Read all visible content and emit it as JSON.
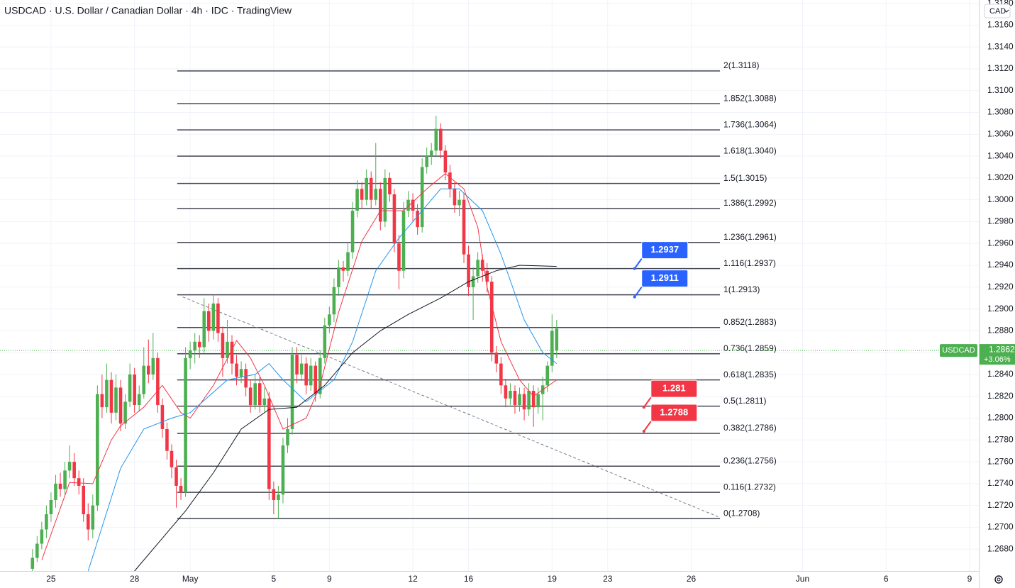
{
  "chart_data": {
    "type": "candlestick",
    "title": "USDCAD · U.S. Dollar / Canadian Dollar · 4h · IDC · TradingView",
    "currency": "CAD",
    "symbol": "USDCAD",
    "last_price": 1.2862,
    "last_change": "+3.06%",
    "up_color": "#4caf50",
    "down_color": "#f23645",
    "grid": true,
    "xlim": [
      -7,
      204
    ],
    "xticks": [
      {
        "value": 4,
        "label": "25"
      },
      {
        "value": 22,
        "label": "28"
      },
      {
        "value": 34,
        "label": "May"
      },
      {
        "value": 52,
        "label": "5"
      },
      {
        "value": 64,
        "label": "9"
      },
      {
        "value": 82,
        "label": "12"
      },
      {
        "value": 94,
        "label": "16"
      },
      {
        "value": 112,
        "label": "19"
      },
      {
        "value": 124,
        "label": "23"
      },
      {
        "value": 142,
        "label": "26"
      },
      {
        "value": 166,
        "label": "Jun"
      },
      {
        "value": 184,
        "label": "6"
      },
      {
        "value": 202,
        "label": "9"
      }
    ],
    "ylim": [
      1.266,
      1.3183
    ],
    "yticks": [
      {
        "value": 1.268,
        "label": "1.2680"
      },
      {
        "value": 1.27,
        "label": "1.2700"
      },
      {
        "value": 1.272,
        "label": "1.2720"
      },
      {
        "value": 1.274,
        "label": "1.2740"
      },
      {
        "value": 1.276,
        "label": "1.2760"
      },
      {
        "value": 1.278,
        "label": "1.2780"
      },
      {
        "value": 1.28,
        "label": "1.2800"
      },
      {
        "value": 1.282,
        "label": "1.2820"
      },
      {
        "value": 1.284,
        "label": "1.2840"
      },
      {
        "value": 1.286,
        "label": "1.2860"
      },
      {
        "value": 1.288,
        "label": "1.2880"
      },
      {
        "value": 1.29,
        "label": "1.2900"
      },
      {
        "value": 1.292,
        "label": "1.2920"
      },
      {
        "value": 1.294,
        "label": "1.2940"
      },
      {
        "value": 1.296,
        "label": "1.2960"
      },
      {
        "value": 1.298,
        "label": "1.2980"
      },
      {
        "value": 1.3,
        "label": "1.3000"
      },
      {
        "value": 1.302,
        "label": "1.3020"
      },
      {
        "value": 1.304,
        "label": "1.3040"
      },
      {
        "value": 1.306,
        "label": "1.3060"
      },
      {
        "value": 1.308,
        "label": "1.3080"
      },
      {
        "value": 1.31,
        "label": "1.3100"
      },
      {
        "value": 1.312,
        "label": "1.3120"
      },
      {
        "value": 1.314,
        "label": "1.3140"
      },
      {
        "value": 1.316,
        "label": "1.3160"
      },
      {
        "value": 1.318,
        "label": "1.3180"
      }
    ],
    "x": [
      0,
      1,
      2,
      3,
      4,
      5,
      6,
      7,
      8,
      9,
      10,
      11,
      12,
      13,
      14,
      15,
      16,
      17,
      18,
      19,
      20,
      21,
      22,
      23,
      24,
      25,
      26,
      27,
      28,
      29,
      30,
      31,
      32,
      33,
      34,
      35,
      36,
      37,
      38,
      39,
      40,
      41,
      42,
      43,
      44,
      45,
      46,
      47,
      48,
      49,
      50,
      51,
      52,
      53,
      54,
      55,
      56,
      57,
      58,
      59,
      60,
      61,
      62,
      63,
      64,
      65,
      66,
      67,
      68,
      69,
      70,
      71,
      72,
      73,
      74,
      75,
      76,
      77,
      78,
      79,
      80,
      81,
      82,
      83,
      84,
      85,
      86,
      87,
      88,
      89,
      90,
      91,
      92,
      93,
      94,
      95,
      96,
      97,
      98,
      99,
      100,
      101,
      102,
      103,
      104,
      105,
      106,
      107,
      108,
      109,
      110,
      111,
      112,
      113
    ],
    "candles": [
      [
        1.2662,
        1.268,
        1.2655,
        1.2672
      ],
      [
        1.2672,
        1.2692,
        1.2668,
        1.2685
      ],
      [
        1.2685,
        1.2705,
        1.268,
        1.2698
      ],
      [
        1.2698,
        1.272,
        1.269,
        1.2712
      ],
      [
        1.2712,
        1.2732,
        1.2705,
        1.2725
      ],
      [
        1.2725,
        1.2748,
        1.2718,
        1.274
      ],
      [
        1.274,
        1.275,
        1.2728,
        1.2735
      ],
      [
        1.2735,
        1.276,
        1.273,
        1.2752
      ],
      [
        1.2752,
        1.2775,
        1.2745,
        1.276
      ],
      [
        1.276,
        1.2768,
        1.2738,
        1.2745
      ],
      [
        1.2745,
        1.2752,
        1.273,
        1.2738
      ],
      [
        1.2738,
        1.2745,
        1.2705,
        1.2712
      ],
      [
        1.2712,
        1.2722,
        1.2688,
        1.2698
      ],
      [
        1.2698,
        1.273,
        1.269,
        1.272
      ],
      [
        1.272,
        1.283,
        1.2715,
        1.2822
      ],
      [
        1.2822,
        1.284,
        1.28,
        1.281
      ],
      [
        1.281,
        1.285,
        1.2805,
        1.2835
      ],
      [
        1.2835,
        1.2842,
        1.2795,
        1.2805
      ],
      [
        1.2805,
        1.284,
        1.2798,
        1.2828
      ],
      [
        1.2828,
        1.2835,
        1.2788,
        1.2795
      ],
      [
        1.2795,
        1.2822,
        1.279,
        1.2815
      ],
      [
        1.2815,
        1.285,
        1.281,
        1.284
      ],
      [
        1.284,
        1.2846,
        1.2805,
        1.2812
      ],
      [
        1.2812,
        1.283,
        1.2806,
        1.2822
      ],
      [
        1.2822,
        1.2865,
        1.2818,
        1.2848
      ],
      [
        1.2848,
        1.2872,
        1.2832,
        1.284
      ],
      [
        1.284,
        1.2878,
        1.2835,
        1.2855
      ],
      [
        1.2855,
        1.286,
        1.2805,
        1.2812
      ],
      [
        1.2812,
        1.2818,
        1.2782,
        1.279
      ],
      [
        1.279,
        1.2796,
        1.2762,
        1.277
      ],
      [
        1.277,
        1.2776,
        1.2745,
        1.2755
      ],
      [
        1.2755,
        1.2762,
        1.2718,
        1.2738
      ],
      [
        1.2738,
        1.2745,
        1.2725,
        1.2732
      ],
      [
        1.2732,
        1.2865,
        1.2728,
        1.2855
      ],
      [
        1.2855,
        1.287,
        1.2845,
        1.2862
      ],
      [
        1.2862,
        1.2878,
        1.285,
        1.287
      ],
      [
        1.287,
        1.2876,
        1.2855,
        1.2865
      ],
      [
        1.2865,
        1.291,
        1.286,
        1.2898
      ],
      [
        1.2898,
        1.2905,
        1.287,
        1.288
      ],
      [
        1.288,
        1.2913,
        1.2872,
        1.2905
      ],
      [
        1.2905,
        1.291,
        1.287,
        1.2878
      ],
      [
        1.2878,
        1.2884,
        1.2838,
        1.2855
      ],
      [
        1.2855,
        1.289,
        1.285,
        1.287
      ],
      [
        1.287,
        1.2876,
        1.284,
        1.285
      ],
      [
        1.285,
        1.2858,
        1.283,
        1.2838
      ],
      [
        1.2838,
        1.2852,
        1.2832,
        1.2845
      ],
      [
        1.2845,
        1.285,
        1.282,
        1.2828
      ],
      [
        1.2828,
        1.2835,
        1.2805,
        1.2812
      ],
      [
        1.2812,
        1.284,
        1.2808,
        1.2832
      ],
      [
        1.2832,
        1.2838,
        1.2805,
        1.2812
      ],
      [
        1.2812,
        1.2828,
        1.2806,
        1.2818
      ],
      [
        1.2818,
        1.2824,
        1.2725,
        1.2735
      ],
      [
        1.2735,
        1.2742,
        1.2712,
        1.2725
      ],
      [
        1.2725,
        1.2738,
        1.2708,
        1.273
      ],
      [
        1.273,
        1.2782,
        1.2722,
        1.2775
      ],
      [
        1.2775,
        1.28,
        1.2768,
        1.279
      ],
      [
        1.279,
        1.2865,
        1.2785,
        1.2858
      ],
      [
        1.2858,
        1.2865,
        1.2832,
        1.284
      ],
      [
        1.284,
        1.2858,
        1.2834,
        1.285
      ],
      [
        1.285,
        1.2856,
        1.2822,
        1.283
      ],
      [
        1.283,
        1.2855,
        1.2825,
        1.2848
      ],
      [
        1.2848,
        1.2852,
        1.2815,
        1.2822
      ],
      [
        1.2822,
        1.2862,
        1.2818,
        1.2855
      ],
      [
        1.2855,
        1.2892,
        1.285,
        1.2885
      ],
      [
        1.2885,
        1.2902,
        1.2878,
        1.2895
      ],
      [
        1.2895,
        1.2928,
        1.2888,
        1.292
      ],
      [
        1.292,
        1.2945,
        1.2912,
        1.2938
      ],
      [
        1.2938,
        1.2944,
        1.2925,
        1.2935
      ],
      [
        1.2935,
        1.296,
        1.293,
        1.2952
      ],
      [
        1.2952,
        1.2998,
        1.2946,
        1.299
      ],
      [
        1.299,
        1.3018,
        1.2984,
        1.301
      ],
      [
        1.301,
        1.3016,
        1.2992,
        1.3
      ],
      [
        1.3,
        1.3028,
        1.2995,
        1.302
      ],
      [
        1.302,
        1.3026,
        1.2992,
        1.3
      ],
      [
        1.3,
        1.3052,
        1.2995,
        1.301
      ],
      [
        1.301,
        1.3016,
        1.2972,
        1.298
      ],
      [
        1.298,
        1.3028,
        1.2975,
        1.302
      ],
      [
        1.302,
        1.3025,
        1.2998,
        1.3005
      ],
      [
        1.3005,
        1.301,
        1.2952,
        1.296
      ],
      [
        1.296,
        1.2968,
        1.2918,
        1.2935
      ],
      [
        1.2935,
        1.2998,
        1.2928,
        1.299
      ],
      [
        1.299,
        1.3008,
        1.2984,
        1.3
      ],
      [
        1.3,
        1.3006,
        1.298,
        1.299
      ],
      [
        1.299,
        1.2996,
        1.2968,
        1.2975
      ],
      [
        1.2975,
        1.3038,
        1.297,
        1.303
      ],
      [
        1.303,
        1.3048,
        1.3024,
        1.304
      ],
      [
        1.304,
        1.3052,
        1.3032,
        1.3045
      ],
      [
        1.3045,
        1.3077,
        1.304,
        1.3065
      ],
      [
        1.3065,
        1.307,
        1.3038,
        1.3045
      ],
      [
        1.3045,
        1.305,
        1.3018,
        1.3025
      ],
      [
        1.3025,
        1.3032,
        1.3002,
        1.301
      ],
      [
        1.301,
        1.3016,
        1.2988,
        1.2995
      ],
      [
        1.2995,
        1.3008,
        1.2985,
        1.3
      ],
      [
        1.3,
        1.3006,
        1.2942,
        1.295
      ],
      [
        1.295,
        1.2958,
        1.2912,
        1.292
      ],
      [
        1.292,
        1.2938,
        1.289,
        1.293
      ],
      [
        1.293,
        1.2952,
        1.2924,
        1.2945
      ],
      [
        1.2945,
        1.295,
        1.2925,
        1.2935
      ],
      [
        1.2935,
        1.2942,
        1.2915,
        1.2925
      ],
      [
        1.2925,
        1.293,
        1.2852,
        1.286
      ],
      [
        1.286,
        1.2866,
        1.2842,
        1.285
      ],
      [
        1.285,
        1.2856,
        1.2822,
        1.283
      ],
      [
        1.283,
        1.2836,
        1.281,
        1.2818
      ],
      [
        1.2818,
        1.2832,
        1.2812,
        1.2825
      ],
      [
        1.2825,
        1.283,
        1.2804,
        1.2812
      ],
      [
        1.2812,
        1.2828,
        1.2806,
        1.2822
      ],
      [
        1.2822,
        1.2828,
        1.2798,
        1.2808
      ],
      [
        1.2808,
        1.2832,
        1.2802,
        1.2825
      ],
      [
        1.2825,
        1.283,
        1.2792,
        1.281
      ],
      [
        1.281,
        1.2828,
        1.2804,
        1.2822
      ],
      [
        1.2822,
        1.2838,
        1.2798,
        1.283
      ],
      [
        1.283,
        1.2852,
        1.2824,
        1.2848
      ],
      [
        1.2848,
        1.2895,
        1.2842,
        1.288
      ],
      [
        1.2862,
        1.289,
        1.2855,
        1.2882
      ]
    ],
    "series": [
      {
        "name": "MA fast",
        "color": "#f23645",
        "x": [
          2,
          8,
          13,
          17,
          19,
          24,
          28,
          32,
          34,
          39,
          44,
          47,
          50,
          54,
          59,
          62,
          66,
          71,
          75,
          80,
          85,
          89,
          93,
          96,
          98,
          101,
          105,
          108,
          113
        ],
        "values": [
          1.267,
          1.2741,
          1.274,
          1.278,
          1.2793,
          1.281,
          1.283,
          1.2805,
          1.28,
          1.283,
          1.2871,
          1.2855,
          1.283,
          1.279,
          1.28,
          1.283,
          1.2897,
          1.2962,
          1.299,
          1.299,
          1.301,
          1.3024,
          1.301,
          1.2975,
          1.292,
          1.287,
          1.2835,
          1.282,
          1.2835
        ]
      },
      {
        "name": "MA medium",
        "color": "#2196f3",
        "x": [
          12,
          19,
          24,
          30,
          34,
          42,
          48,
          51,
          54,
          59,
          65,
          69,
          74,
          79,
          83,
          88,
          92,
          97,
          101,
          106,
          110,
          113
        ],
        "values": [
          1.266,
          1.2754,
          1.279,
          1.28,
          1.2805,
          1.2835,
          1.284,
          1.285,
          1.2835,
          1.2815,
          1.2835,
          1.287,
          1.2935,
          1.2965,
          1.2985,
          1.301,
          1.301,
          1.299,
          1.295,
          1.289,
          1.286,
          1.285
        ]
      },
      {
        "name": "MA slow",
        "color": "#131722",
        "x": [
          22,
          28,
          33,
          39,
          45,
          51,
          57,
          63,
          69,
          75,
          81,
          88,
          94,
          100,
          105,
          113
        ],
        "values": [
          1.266,
          1.269,
          1.2715,
          1.275,
          1.279,
          1.2808,
          1.281,
          1.283,
          1.286,
          1.288,
          1.2895,
          1.291,
          1.2925,
          1.2935,
          1.294,
          1.2939
        ]
      }
    ],
    "trendline": {
      "x": [
        32.4,
        148.2
      ],
      "values": [
        1.2911,
        1.2709
      ]
    },
    "fib_x": [
      31.2,
      148.2
    ],
    "fib_levels": [
      {
        "value": 1.3118,
        "label": "2(1.3118)"
      },
      {
        "value": 1.3088,
        "label": "1.852(1.3088)"
      },
      {
        "value": 1.3064,
        "label": "1.736(1.3064)"
      },
      {
        "value": 1.304,
        "label": "1.618(1.3040)"
      },
      {
        "value": 1.3015,
        "label": "1.5(1.3015)"
      },
      {
        "value": 1.2992,
        "label": "1.386(1.2992)"
      },
      {
        "value": 1.2961,
        "label": "1.236(1.2961)"
      },
      {
        "value": 1.2937,
        "label": "1.116(1.2937)"
      },
      {
        "value": 1.2913,
        "label": "1(1.2913)"
      },
      {
        "value": 1.2883,
        "label": "0.852(1.2883)"
      },
      {
        "value": 1.2859,
        "label": "0.736(1.2859)"
      },
      {
        "value": 1.2835,
        "label": "0.618(1.2835)"
      },
      {
        "value": 1.2811,
        "label": "0.5(1.2811)"
      },
      {
        "value": 1.2786,
        "label": "0.382(1.2786)"
      },
      {
        "value": 1.2756,
        "label": "0.236(1.2756)"
      },
      {
        "value": 1.2732,
        "label": "0.116(1.2732)"
      },
      {
        "value": 1.2708,
        "label": "0(1.2708)"
      }
    ],
    "callouts": [
      {
        "x": 129.8,
        "value": 1.2937,
        "color": "#2962ff"
      },
      {
        "x": 129.8,
        "value": 1.2911,
        "color": "#2962ff"
      },
      {
        "x": 131.8,
        "value": 1.281,
        "color": "#f23645"
      },
      {
        "x": 131.8,
        "value": 1.2788,
        "color": "#f23645"
      }
    ]
  }
}
